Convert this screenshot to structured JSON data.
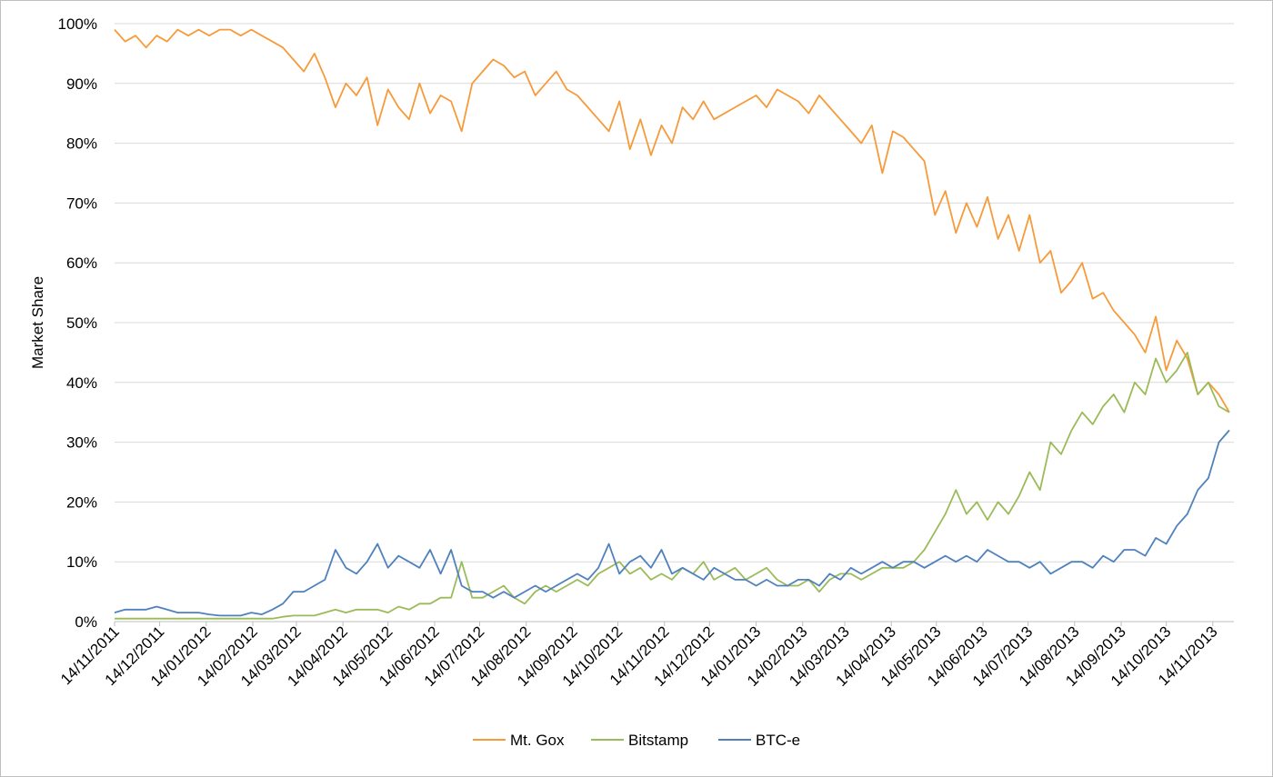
{
  "chart_data": {
    "type": "line",
    "title": "",
    "xlabel": "",
    "ylabel": "Market Share",
    "x_range": [
      "2011-11-14",
      "2013-11-28"
    ],
    "ylim": [
      0,
      100
    ],
    "y_unit": "%",
    "y_ticks": [
      "0%",
      "10%",
      "20%",
      "30%",
      "40%",
      "50%",
      "60%",
      "70%",
      "80%",
      "90%",
      "100%"
    ],
    "x_ticks": [
      "14/11/2011",
      "14/12/2011",
      "14/01/2012",
      "14/02/2012",
      "14/03/2012",
      "14/04/2012",
      "14/05/2012",
      "14/06/2012",
      "14/07/2012",
      "14/08/2012",
      "14/09/2012",
      "14/10/2012",
      "14/11/2012",
      "14/12/2012",
      "14/01/2013",
      "14/02/2013",
      "14/03/2013",
      "14/04/2013",
      "14/05/2013",
      "14/06/2013",
      "14/07/2013",
      "14/08/2013",
      "14/09/2013",
      "14/10/2013",
      "14/11/2013"
    ],
    "grid": "horizontal",
    "legend_position": "bottom",
    "series_note_values_are_daily_market_share_percent_approximate_weekly_points": true,
    "dates": [
      "2011-11-14",
      "2011-11-21",
      "2011-11-28",
      "2011-12-05",
      "2011-12-12",
      "2011-12-19",
      "2011-12-26",
      "2012-01-02",
      "2012-01-09",
      "2012-01-16",
      "2012-01-23",
      "2012-01-30",
      "2012-02-06",
      "2012-02-13",
      "2012-02-20",
      "2012-02-27",
      "2012-03-05",
      "2012-03-12",
      "2012-03-19",
      "2012-03-26",
      "2012-04-02",
      "2012-04-09",
      "2012-04-16",
      "2012-04-23",
      "2012-04-30",
      "2012-05-07",
      "2012-05-14",
      "2012-05-21",
      "2012-05-28",
      "2012-06-04",
      "2012-06-11",
      "2012-06-18",
      "2012-06-25",
      "2012-07-02",
      "2012-07-09",
      "2012-07-16",
      "2012-07-23",
      "2012-07-30",
      "2012-08-06",
      "2012-08-13",
      "2012-08-20",
      "2012-08-27",
      "2012-09-03",
      "2012-09-10",
      "2012-09-17",
      "2012-09-24",
      "2012-10-01",
      "2012-10-08",
      "2012-10-15",
      "2012-10-22",
      "2012-10-29",
      "2012-11-05",
      "2012-11-12",
      "2012-11-19",
      "2012-11-26",
      "2012-12-03",
      "2012-12-10",
      "2012-12-17",
      "2012-12-24",
      "2012-12-31",
      "2013-01-07",
      "2013-01-14",
      "2013-01-21",
      "2013-01-28",
      "2013-02-04",
      "2013-02-11",
      "2013-02-18",
      "2013-02-25",
      "2013-03-04",
      "2013-03-11",
      "2013-03-18",
      "2013-03-25",
      "2013-04-01",
      "2013-04-08",
      "2013-04-15",
      "2013-04-22",
      "2013-04-29",
      "2013-05-06",
      "2013-05-13",
      "2013-05-20",
      "2013-05-27",
      "2013-06-03",
      "2013-06-10",
      "2013-06-17",
      "2013-06-24",
      "2013-07-01",
      "2013-07-08",
      "2013-07-15",
      "2013-07-22",
      "2013-07-29",
      "2013-08-05",
      "2013-08-12",
      "2013-08-19",
      "2013-08-26",
      "2013-09-02",
      "2013-09-09",
      "2013-09-16",
      "2013-09-23",
      "2013-09-30",
      "2013-10-07",
      "2013-10-14",
      "2013-10-21",
      "2013-10-28",
      "2013-11-04",
      "2013-11-11",
      "2013-11-18",
      "2013-11-25"
    ],
    "series": [
      {
        "name": "Mt. Gox",
        "color": "#F79A3A",
        "values": [
          99,
          97,
          98,
          96,
          98,
          97,
          99,
          98,
          99,
          98,
          99,
          99,
          98,
          99,
          98,
          97,
          96,
          94,
          92,
          95,
          91,
          86,
          90,
          88,
          91,
          83,
          89,
          86,
          84,
          90,
          85,
          88,
          87,
          82,
          90,
          92,
          94,
          93,
          91,
          92,
          88,
          90,
          92,
          89,
          88,
          86,
          84,
          82,
          87,
          79,
          84,
          78,
          83,
          80,
          86,
          84,
          87,
          84,
          85,
          86,
          87,
          88,
          86,
          89,
          88,
          87,
          85,
          88,
          86,
          84,
          82,
          80,
          83,
          75,
          82,
          81,
          79,
          77,
          68,
          72,
          65,
          70,
          66,
          71,
          64,
          68,
          62,
          68,
          60,
          62,
          55,
          57,
          60,
          54,
          55,
          52,
          50,
          48,
          45,
          51,
          42,
          47,
          44,
          38,
          40,
          38,
          35
        ]
      },
      {
        "name": "Bitstamp",
        "color": "#9BBB59",
        "values": [
          0.5,
          0.5,
          0.5,
          0.5,
          0.5,
          0.5,
          0.5,
          0.5,
          0.5,
          0.5,
          0.5,
          0.5,
          0.5,
          0.5,
          0.5,
          0.5,
          0.8,
          1,
          1,
          1,
          1.5,
          2,
          1.5,
          2,
          2,
          2,
          1.5,
          2.5,
          2,
          3,
          3,
          4,
          4,
          10,
          4,
          4,
          5,
          6,
          4,
          3,
          5,
          6,
          5,
          6,
          7,
          6,
          8,
          9,
          10,
          8,
          9,
          7,
          8,
          7,
          9,
          8,
          10,
          7,
          8,
          9,
          7,
          8,
          9,
          7,
          6,
          6,
          7,
          5,
          7,
          8,
          8,
          7,
          8,
          9,
          9,
          9,
          10,
          12,
          15,
          18,
          22,
          18,
          20,
          17,
          20,
          18,
          21,
          25,
          22,
          30,
          28,
          32,
          35,
          33,
          36,
          38,
          35,
          40,
          38,
          44,
          40,
          42,
          45,
          38,
          40,
          36,
          35
        ]
      },
      {
        "name": "BTC-e",
        "color": "#4E81BD",
        "values": [
          1.5,
          2,
          2,
          2,
          2.5,
          2,
          1.5,
          1.5,
          1.5,
          1.2,
          1,
          1,
          1,
          1.5,
          1.2,
          2,
          3,
          5,
          5,
          6,
          7,
          12,
          9,
          8,
          10,
          13,
          9,
          11,
          10,
          9,
          12,
          8,
          12,
          6,
          5,
          5,
          4,
          5,
          4,
          5,
          6,
          5,
          6,
          7,
          8,
          7,
          9,
          13,
          8,
          10,
          11,
          9,
          12,
          8,
          9,
          8,
          7,
          9,
          8,
          7,
          7,
          6,
          7,
          6,
          6,
          7,
          7,
          6,
          8,
          7,
          9,
          8,
          9,
          10,
          9,
          10,
          10,
          9,
          10,
          11,
          10,
          11,
          10,
          12,
          11,
          10,
          10,
          9,
          10,
          8,
          9,
          10,
          10,
          9,
          11,
          10,
          12,
          12,
          11,
          14,
          13,
          16,
          18,
          22,
          24,
          30,
          32
        ]
      }
    ]
  }
}
